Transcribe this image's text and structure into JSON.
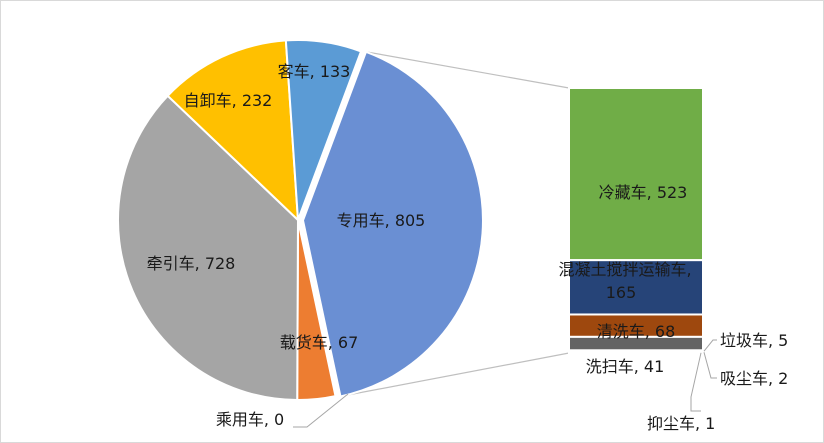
{
  "chart_data": {
    "type": "bar-of-pie",
    "title": "",
    "pie": [
      {
        "name": "专用车",
        "value": 805,
        "color": "#6a8fd3",
        "label": "专用车, 805"
      },
      {
        "name": "载货车",
        "value": 67,
        "color": "#ed7d31",
        "label": "载货车, 67"
      },
      {
        "name": "乘用车",
        "value": 0,
        "color": "#8a8a8a",
        "label": "乘用车, 0"
      },
      {
        "name": "牵引车",
        "value": 728,
        "color": "#a5a5a5",
        "label": "牵引车, 728"
      },
      {
        "name": "自卸车",
        "value": 232,
        "color": "#ffc000",
        "label": "自卸车, 232"
      },
      {
        "name": "客车",
        "value": 133,
        "color": "#5b9bd5",
        "label": "客车, 133"
      }
    ],
    "exploded_slice": "专用车",
    "bar_breakdown": [
      {
        "name": "冷藏车",
        "value": 523,
        "color": "#70ad47",
        "label": "冷藏车, 523"
      },
      {
        "name": "混凝土搅拌运输车",
        "value": 165,
        "color": "#264478",
        "label_line1": "混凝土搅拌运输车,",
        "label_line2": "165"
      },
      {
        "name": "清洗车",
        "value": 68,
        "color": "#9e480e",
        "label": "清洗车, 68"
      },
      {
        "name": "洗扫车",
        "value": 41,
        "color": "#636363",
        "label": "洗扫车, 41"
      },
      {
        "name": "垃圾车",
        "value": 5,
        "color": "#997300",
        "label": "垃圾车, 5"
      },
      {
        "name": "吸尘车",
        "value": 2,
        "color": "#255e91",
        "label": "吸尘车, 2"
      },
      {
        "name": "抑尘车",
        "value": 1,
        "color": "#43682b",
        "label": "抑尘车, 1"
      }
    ]
  }
}
